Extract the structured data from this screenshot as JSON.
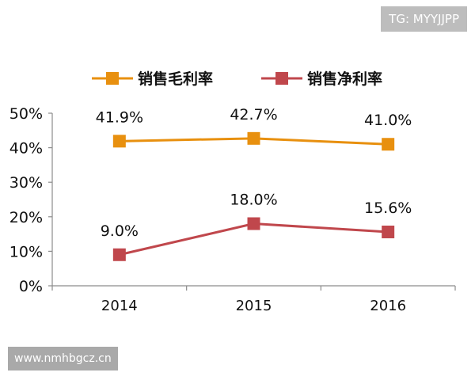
{
  "watermarks": {
    "top": "TG: MYYJJPP",
    "bottom": "www.nmhbgcz.cn"
  },
  "chart_data": {
    "type": "line",
    "x": [
      "2014",
      "2015",
      "2016"
    ],
    "y_ticks": [
      "0%",
      "10%",
      "20%",
      "30%",
      "40%",
      "50%"
    ],
    "ylim": [
      0,
      50
    ],
    "grid": false,
    "legend_position": "top",
    "series": [
      {
        "name": "销售毛利率",
        "values": [
          41.9,
          42.7,
          41.0
        ],
        "labels": [
          "41.9%",
          "42.7%",
          "41.0%"
        ],
        "color": "#E8900F"
      },
      {
        "name": "销售净利率",
        "values": [
          9.0,
          18.0,
          15.6
        ],
        "labels": [
          "9.0%",
          "18.0%",
          "15.6%"
        ],
        "color": "#C0474C"
      }
    ]
  }
}
